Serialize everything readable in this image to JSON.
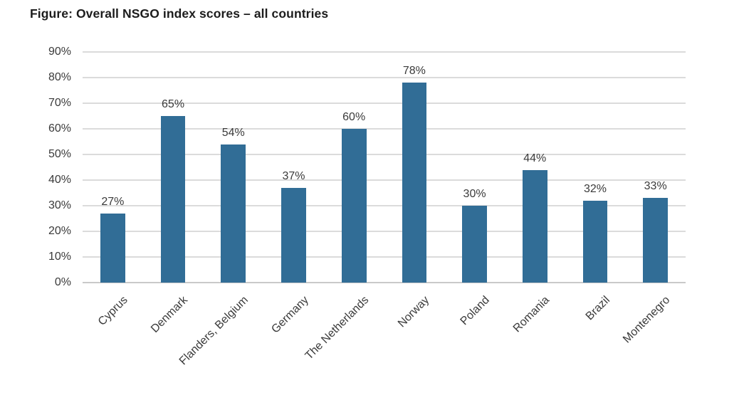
{
  "chart_data": {
    "type": "bar",
    "title": "Figure: Overall NSGO index scores – all countries",
    "categories": [
      "Cyprus",
      "Denmark",
      "Flanders, Belgium",
      "Germany",
      "The Netherlands",
      "Norway",
      "Poland",
      "Romania",
      "Brazil",
      "Montenegro"
    ],
    "values": [
      27,
      65,
      54,
      37,
      60,
      78,
      30,
      44,
      32,
      33
    ],
    "data_labels": [
      "27%",
      "65%",
      "54%",
      "37%",
      "60%",
      "78%",
      "30%",
      "44%",
      "32%",
      "33%"
    ],
    "xlabel": "",
    "ylabel": "",
    "ylim": [
      0,
      90
    ],
    "yticks": [
      "0%",
      "10%",
      "20%",
      "30%",
      "40%",
      "50%",
      "60%",
      "70%",
      "80%",
      "90%"
    ],
    "grid": "horizontal",
    "legend": "none",
    "colors": {
      "bar": "#316D96",
      "gridline": "#DBDBDB",
      "baseline": "#C9C9C9",
      "label_text": "#3A3A3A",
      "title_text": "#1C1C1C",
      "background": "#FFFFFF"
    }
  }
}
